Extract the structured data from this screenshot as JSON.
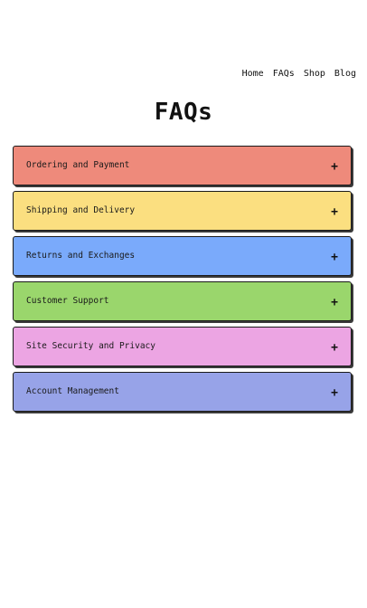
{
  "nav": {
    "links": [
      "Home",
      "FAQs",
      "Shop",
      "Blog"
    ]
  },
  "page": {
    "title": "FAQs"
  },
  "faqs": [
    {
      "question": "Ordering and Payment",
      "toggle": "+",
      "color": "#ee8a7b"
    },
    {
      "question": "Shipping and Delivery",
      "toggle": "+",
      "color": "#fbdf80"
    },
    {
      "question": "Returns and Exchanges",
      "toggle": "+",
      "color": "#7aaafb"
    },
    {
      "question": "Customer Support",
      "toggle": "+",
      "color": "#9ad66c"
    },
    {
      "question": "Site Security and Privacy",
      "toggle": "+",
      "color": "#eca5e3"
    },
    {
      "question": "Account Management",
      "toggle": "+",
      "color": "#97a3e8"
    }
  ]
}
